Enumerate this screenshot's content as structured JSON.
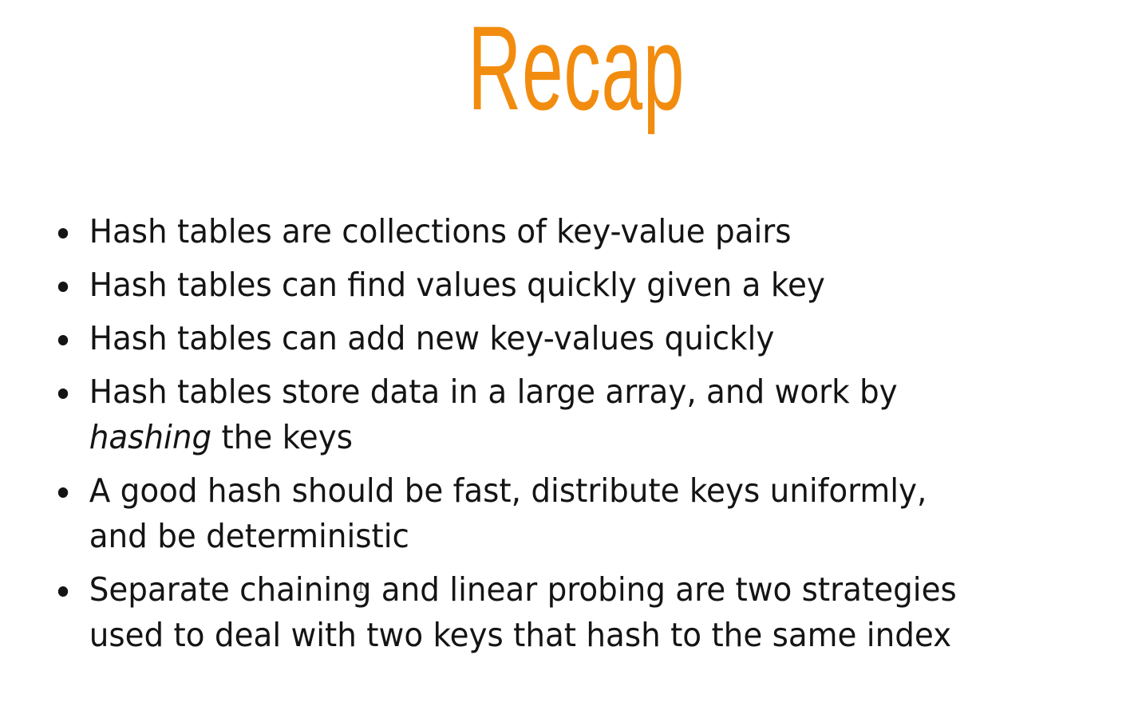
{
  "slide": {
    "title": "Recap",
    "title_color": "#F28C0F",
    "bullets": [
      {
        "line1": "Hash tables are collections of key-value pairs"
      },
      {
        "line1": "Hash tables can find values quickly given a key"
      },
      {
        "line1": "Hash tables can add new key-values quickly"
      },
      {
        "line1": "Hash tables store data in a large array, and work by",
        "line2_em": "hashing",
        "line2_rest": " the keys"
      },
      {
        "line1": "A good hash should be fast, distribute keys uniformly,",
        "line2": "and be deterministic"
      },
      {
        "line1": "Separate chaining and linear probing are two strategies",
        "line2": "used to deal with two keys that hash to the same index"
      }
    ]
  },
  "cursor": {
    "icon": "text-cursor-icon",
    "glyph": "I"
  }
}
